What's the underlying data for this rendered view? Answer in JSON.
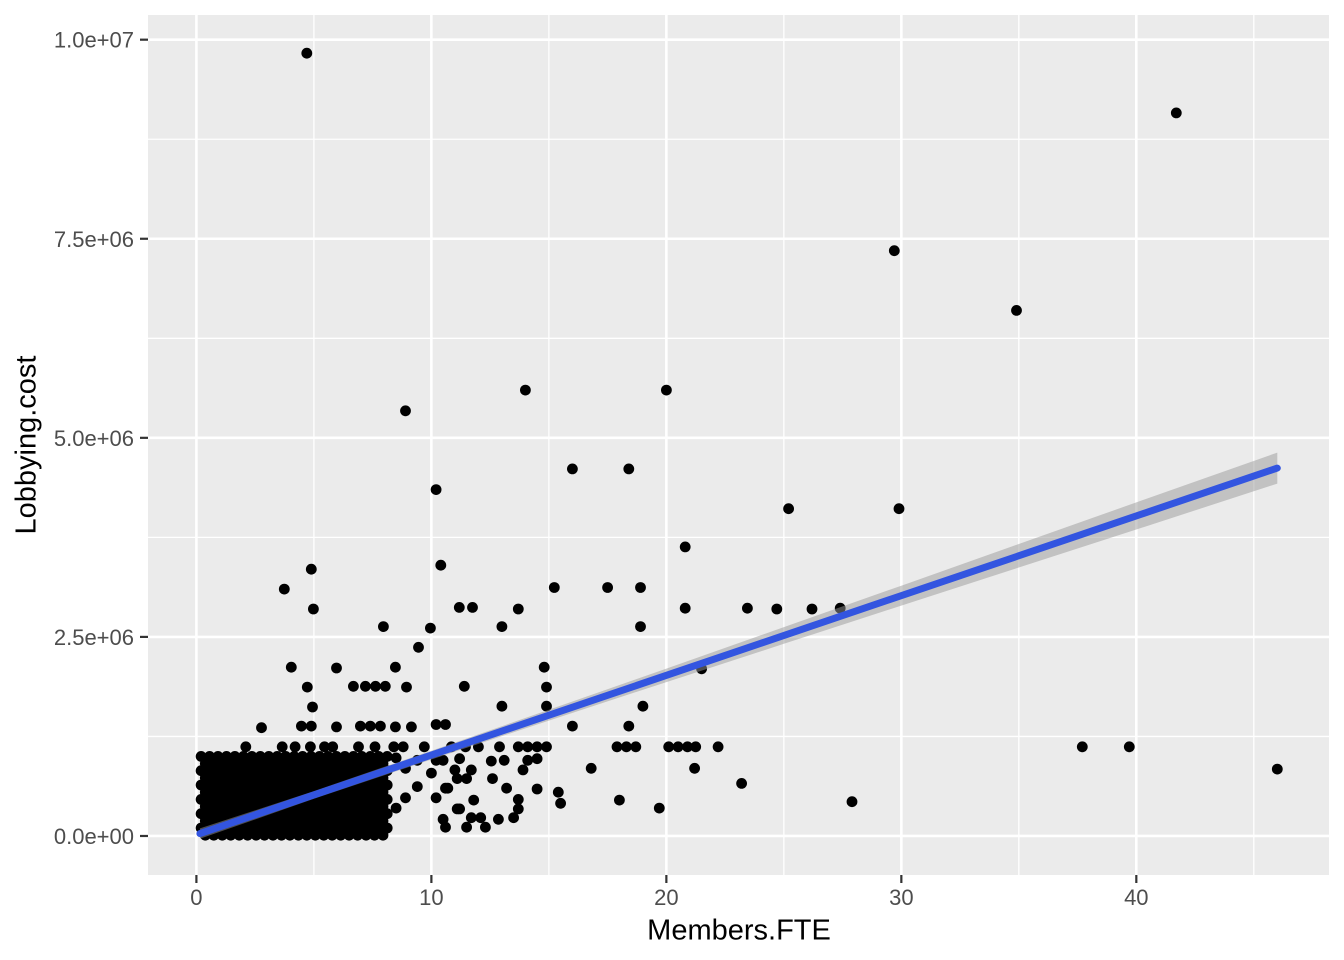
{
  "figure": {
    "background": "#FFFFFF"
  },
  "panel": {
    "background": "#EBEBEB",
    "grid_color": "#FFFFFF",
    "tick_color": "#333333",
    "tick_label_color": "#4D4D4D"
  },
  "chart_data": {
    "type": "scatter",
    "title": "",
    "xlabel": "Members.FTE",
    "ylabel": "Lobbying.cost",
    "legend": "none",
    "grid": "on",
    "x_domain": [
      -2.06,
      48.2
    ],
    "y_domain": [
      -490000,
      10310000
    ],
    "x_ticks": {
      "major": [
        0,
        10,
        20,
        30,
        40
      ],
      "minor": [
        5,
        15,
        25,
        35,
        45
      ],
      "labels": [
        "0",
        "10",
        "20",
        "30",
        "40"
      ]
    },
    "y_ticks": {
      "major": [
        0,
        2500000,
        5000000,
        7500000,
        10000000
      ],
      "minor": [
        1250000,
        3750000,
        6250000,
        8750000
      ],
      "labels": [
        "0.0e+00",
        "2.5e+06",
        "5.0e+06",
        "7.5e+06",
        "1.0e+07"
      ]
    },
    "point_color": "#000000",
    "point_radius": 5.4,
    "points": [
      [
        4.7,
        9830000
      ],
      [
        41.7,
        9080000
      ],
      [
        29.7,
        7350000
      ],
      [
        34.9,
        6600000
      ],
      [
        14.0,
        5600000
      ],
      [
        20.0,
        5600000
      ],
      [
        8.9,
        5340000
      ],
      [
        16.0,
        4610000
      ],
      [
        18.4,
        4610000
      ],
      [
        10.2,
        4350000
      ],
      [
        25.2,
        4110000
      ],
      [
        29.9,
        4110000
      ],
      [
        20.8,
        3630000
      ],
      [
        10.4,
        3400000
      ],
      [
        4.89,
        3350000
      ],
      [
        3.74,
        3100000
      ],
      [
        15.23,
        3120000
      ],
      [
        17.5,
        3120000
      ],
      [
        18.9,
        3120000
      ],
      [
        4.98,
        2850000
      ],
      [
        11.19,
        2870000
      ],
      [
        11.75,
        2870000
      ],
      [
        13.7,
        2850000
      ],
      [
        20.8,
        2860000
      ],
      [
        23.45,
        2860000
      ],
      [
        24.7,
        2850000
      ],
      [
        26.2,
        2850000
      ],
      [
        27.4,
        2860000
      ],
      [
        7.96,
        2630000
      ],
      [
        9.96,
        2610000
      ],
      [
        13.0,
        2630000
      ],
      [
        18.9,
        2630000
      ],
      [
        9.45,
        2370000
      ],
      [
        4.04,
        2120000
      ],
      [
        5.96,
        2110000
      ],
      [
        8.47,
        2120000
      ],
      [
        14.8,
        2120000
      ],
      [
        21.5,
        2100000
      ],
      [
        4.72,
        1870000
      ],
      [
        6.68,
        1880000
      ],
      [
        7.19,
        1880000
      ],
      [
        7.62,
        1880000
      ],
      [
        8.04,
        1880000
      ],
      [
        8.94,
        1870000
      ],
      [
        11.4,
        1880000
      ],
      [
        14.9,
        1870000
      ],
      [
        4.94,
        1620000
      ],
      [
        13.0,
        1630000
      ],
      [
        14.9,
        1630000
      ],
      [
        19.0,
        1630000
      ],
      [
        2.77,
        1360000
      ],
      [
        4.47,
        1380000
      ],
      [
        4.89,
        1380000
      ],
      [
        5.96,
        1370000
      ],
      [
        6.98,
        1380000
      ],
      [
        7.4,
        1380000
      ],
      [
        7.83,
        1380000
      ],
      [
        8.47,
        1370000
      ],
      [
        9.15,
        1370000
      ],
      [
        10.2,
        1400000
      ],
      [
        10.6,
        1400000
      ],
      [
        16.0,
        1380000
      ],
      [
        18.4,
        1380000
      ],
      [
        2.1,
        1120000
      ],
      [
        3.65,
        1120000
      ],
      [
        4.2,
        1120000
      ],
      [
        4.85,
        1120000
      ],
      [
        5.45,
        1120000
      ],
      [
        5.8,
        1120000
      ],
      [
        6.9,
        1120000
      ],
      [
        7.6,
        1120000
      ],
      [
        8.4,
        1120000
      ],
      [
        8.8,
        1120000
      ],
      [
        9.7,
        1120000
      ],
      [
        10.85,
        1120000
      ],
      [
        11.45,
        1120000
      ],
      [
        12.0,
        1120000
      ],
      [
        12.9,
        1120000
      ],
      [
        13.7,
        1120000
      ],
      [
        14.1,
        1120000
      ],
      [
        14.5,
        1120000
      ],
      [
        14.9,
        1120000
      ],
      [
        17.9,
        1120000
      ],
      [
        18.3,
        1120000
      ],
      [
        18.7,
        1120000
      ],
      [
        20.1,
        1120000
      ],
      [
        20.5,
        1120000
      ],
      [
        20.9,
        1120000
      ],
      [
        21.25,
        1120000
      ],
      [
        22.2,
        1120000
      ],
      [
        37.7,
        1120000
      ],
      [
        39.7,
        1120000
      ],
      [
        8.5,
        980000
      ],
      [
        9.4,
        950000
      ],
      [
        10.2,
        950000
      ],
      [
        10.5,
        950000
      ],
      [
        11.2,
        970000
      ],
      [
        12.55,
        940000
      ],
      [
        13.1,
        950000
      ],
      [
        14.1,
        950000
      ],
      [
        14.5,
        970000
      ],
      [
        8.9,
        850000
      ],
      [
        10.0,
        790000
      ],
      [
        11.0,
        830000
      ],
      [
        11.7,
        830000
      ],
      [
        13.9,
        830000
      ],
      [
        9.4,
        620000
      ],
      [
        10.6,
        600000
      ],
      [
        10.7,
        600000
      ],
      [
        13.2,
        600000
      ],
      [
        14.5,
        590000
      ],
      [
        11.1,
        720000
      ],
      [
        11.5,
        720000
      ],
      [
        12.6,
        720000
      ],
      [
        8.9,
        480000
      ],
      [
        10.2,
        480000
      ],
      [
        13.7,
        460000
      ],
      [
        8.5,
        350000
      ],
      [
        11.1,
        340000
      ],
      [
        11.2,
        340000
      ],
      [
        13.7,
        340000
      ],
      [
        11.7,
        230000
      ],
      [
        12.1,
        230000
      ],
      [
        13.5,
        230000
      ],
      [
        10.5,
        210000
      ],
      [
        12.85,
        210000
      ],
      [
        10.6,
        110000
      ],
      [
        11.5,
        110000
      ],
      [
        12.3,
        110000
      ],
      [
        11.8,
        450000
      ],
      [
        16.8,
        850000
      ],
      [
        21.2,
        850000
      ],
      [
        23.2,
        660000
      ],
      [
        15.4,
        550000
      ],
      [
        15.5,
        410000
      ],
      [
        18.0,
        450000
      ],
      [
        19.7,
        350000
      ],
      [
        27.9,
        430000
      ],
      [
        46.0,
        840000
      ]
    ],
    "cluster": {
      "row_ys": [
        1000000,
        910000,
        820000,
        730000,
        640000,
        550000,
        460000,
        370000,
        280000,
        190000,
        100000,
        10000
      ],
      "xs_a": [
        0.2,
        0.56,
        0.92,
        1.28,
        1.64,
        2.0,
        2.36,
        2.72,
        3.08,
        3.44,
        3.8,
        4.16,
        4.52,
        4.88,
        5.24,
        5.6,
        5.96,
        6.32,
        6.68,
        7.04,
        7.4,
        7.76,
        8.12
      ],
      "xs_b": [
        0.38,
        0.74,
        1.1,
        1.46,
        1.82,
        2.18,
        2.54,
        2.9,
        3.26,
        3.62,
        3.98,
        4.34,
        4.7,
        5.06,
        5.42,
        5.78,
        6.14,
        6.5,
        6.86,
        7.22,
        7.58,
        7.94
      ]
    },
    "regression": {
      "color": "#3355E0",
      "width": 7,
      "x": [
        0.15,
        46.0
      ],
      "y": [
        30000,
        4620000
      ],
      "band": {
        "color": "#999999",
        "opacity": 0.5,
        "x": [
          0.15,
          5,
          10,
          15,
          20,
          25,
          30,
          35,
          40,
          46
        ],
        "upper": [
          95000,
          563000,
          1071000,
          1585000,
          2102000,
          2623000,
          3143000,
          3667000,
          4189000,
          4815000
        ],
        "lower": [
          -35000,
          467000,
          961000,
          1449000,
          1932000,
          2413000,
          2893000,
          3371000,
          3849000,
          4425000
        ]
      }
    }
  }
}
